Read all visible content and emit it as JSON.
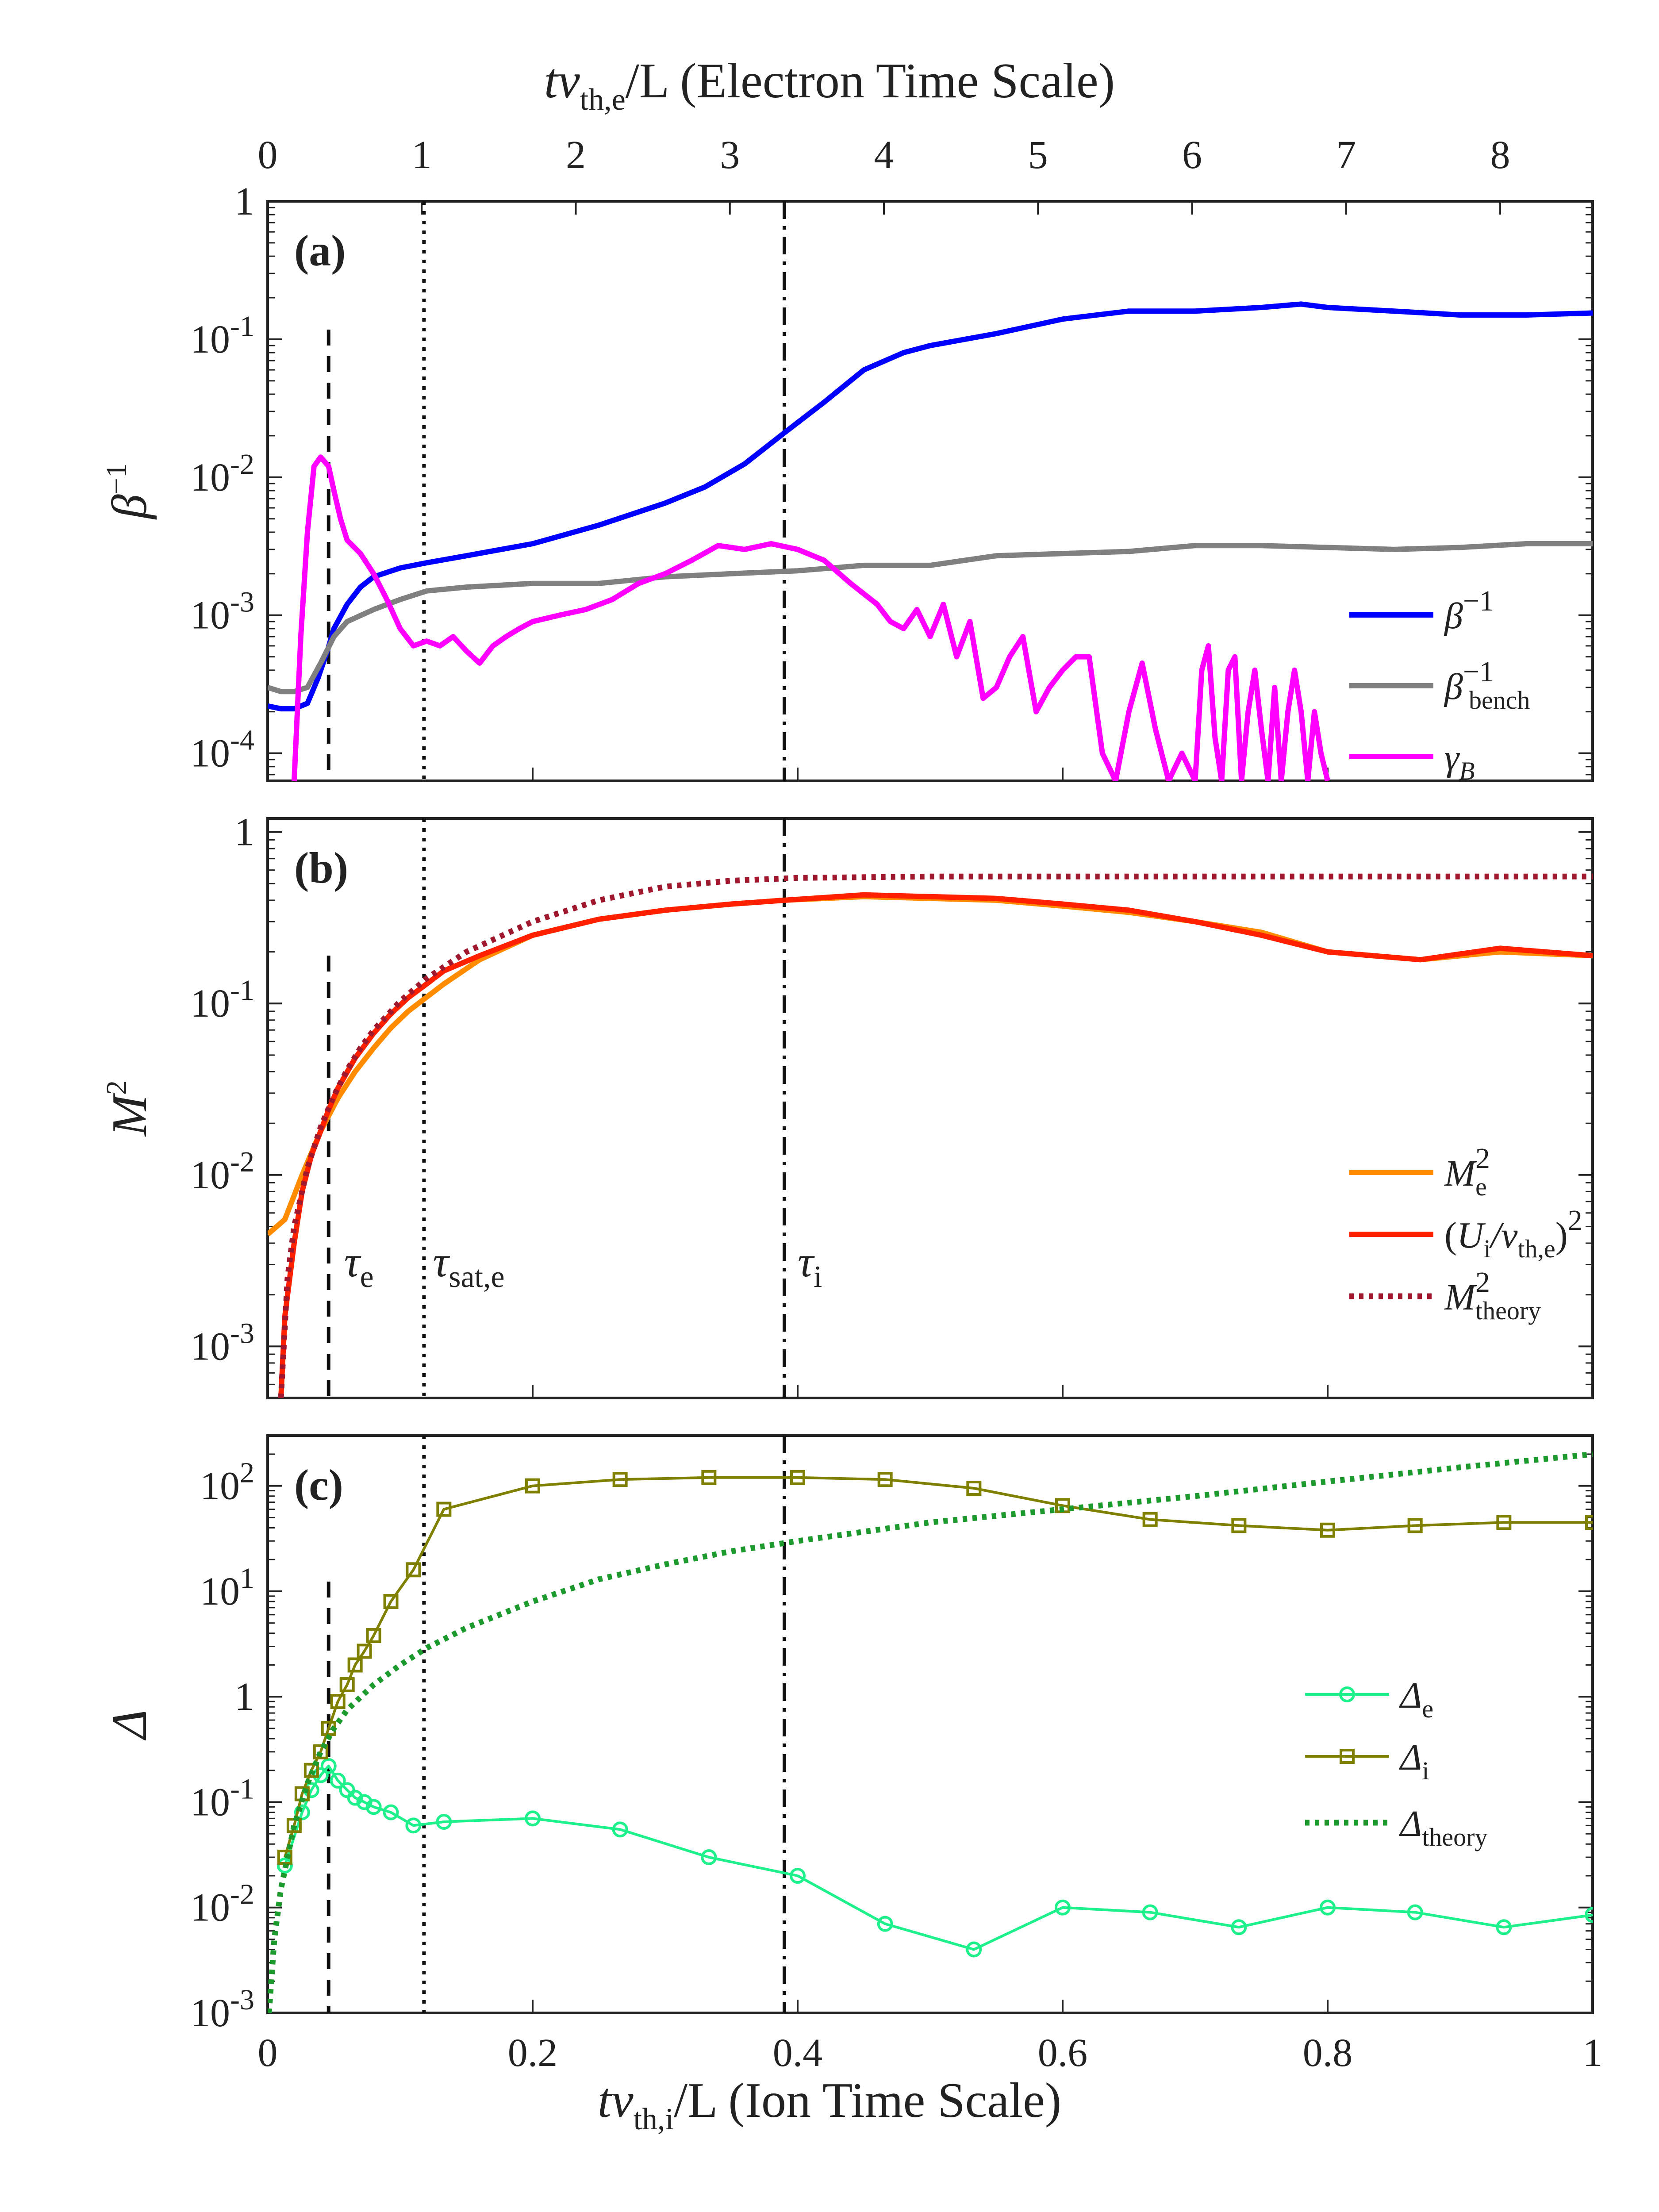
{
  "chart_data": {
    "type": "line",
    "top_axis": {
      "label": "tv_th,e/L (Electron Time Scale)",
      "label_main": "tv",
      "label_sub": "th,e",
      "label_rest": "/L (Electron Time Scale)",
      "ticks": [
        "0",
        "1",
        "2",
        "3",
        "4",
        "5",
        "6",
        "7",
        "8"
      ],
      "range": [
        0,
        8.6
      ]
    },
    "bottom_axis": {
      "label": "tv_th,i/L (Ion Time Scale)",
      "label_main": "tv",
      "label_sub": "th,i",
      "label_rest": "/L (Ion Time Scale)",
      "ticks": [
        "0",
        "0.2",
        "0.4",
        "0.6",
        "0.8",
        "1"
      ],
      "range": [
        0,
        1
      ]
    },
    "vlines": {
      "tau_e": 0.046,
      "tau_sat_e": 0.118,
      "tau_i": 0.39
    },
    "tau_labels": {
      "tau_e": "τ",
      "tau_e_sub": "e",
      "tau_sat": "τ",
      "tau_sat_sub": "sat,e",
      "tau_i": "τ",
      "tau_i_sub": "i"
    },
    "panels": [
      {
        "id": "a",
        "label": "(a)",
        "ylabel_main": "β",
        "ylabel_sup": "−1",
        "yscale": "log",
        "ylim": [
          6.31e-05,
          1
        ],
        "yticks": [
          {
            "v": 1,
            "base": "1",
            "exp": ""
          },
          {
            "v": 0.1,
            "base": "10",
            "exp": "-1"
          },
          {
            "v": 0.01,
            "base": "10",
            "exp": "-2"
          },
          {
            "v": 0.001,
            "base": "10",
            "exp": "-3"
          },
          {
            "v": 0.0001,
            "base": "10",
            "exp": "-4"
          }
        ],
        "legend_position": "bottom-right",
        "series": [
          {
            "name": "β^-1",
            "legend_main": "β",
            "legend_sup": "−1",
            "legend_sub": "",
            "color": "#0000ff",
            "style": "solid",
            "x": [
              0,
              0.01,
              0.02,
              0.03,
              0.038,
              0.045,
              0.05,
              0.06,
              0.07,
              0.08,
              0.1,
              0.12,
              0.15,
              0.2,
              0.25,
              0.3,
              0.33,
              0.36,
              0.39,
              0.42,
              0.45,
              0.48,
              0.5,
              0.55,
              0.6,
              0.65,
              0.7,
              0.75,
              0.78,
              0.8,
              0.85,
              0.9,
              0.95,
              1.0
            ],
            "y": [
              0.00022,
              0.00021,
              0.00021,
              0.00023,
              0.00035,
              0.00055,
              0.0008,
              0.0012,
              0.0016,
              0.0019,
              0.0022,
              0.0024,
              0.0027,
              0.0033,
              0.0045,
              0.0065,
              0.0085,
              0.0125,
              0.021,
              0.035,
              0.06,
              0.08,
              0.09,
              0.11,
              0.14,
              0.16,
              0.16,
              0.17,
              0.18,
              0.17,
              0.16,
              0.15,
              0.15,
              0.155
            ]
          },
          {
            "name": "β^-1_bench",
            "legend_main": "β",
            "legend_sup": "−1",
            "legend_sub": "bench",
            "color": "#808080",
            "style": "solid",
            "x": [
              0,
              0.01,
              0.02,
              0.03,
              0.04,
              0.05,
              0.06,
              0.08,
              0.1,
              0.12,
              0.15,
              0.2,
              0.25,
              0.3,
              0.35,
              0.4,
              0.45,
              0.5,
              0.55,
              0.6,
              0.65,
              0.7,
              0.75,
              0.8,
              0.85,
              0.9,
              0.95,
              1.0
            ],
            "y": [
              0.0003,
              0.00028,
              0.00028,
              0.0003,
              0.00045,
              0.0007,
              0.0009,
              0.0011,
              0.0013,
              0.0015,
              0.0016,
              0.0017,
              0.0017,
              0.0019,
              0.002,
              0.0021,
              0.0023,
              0.0023,
              0.0027,
              0.0028,
              0.0029,
              0.0032,
              0.0032,
              0.0031,
              0.003,
              0.0031,
              0.0033,
              0.0033
            ]
          },
          {
            "name": "γ_B",
            "legend_main": "γ",
            "legend_sup": "",
            "legend_sub": "B",
            "color": "#ff00ff",
            "style": "solid",
            "x": [
              0.02,
              0.025,
              0.03,
              0.035,
              0.04,
              0.046,
              0.05,
              0.055,
              0.06,
              0.07,
              0.08,
              0.09,
              0.1,
              0.11,
              0.12,
              0.13,
              0.14,
              0.15,
              0.16,
              0.17,
              0.18,
              0.19,
              0.2,
              0.22,
              0.24,
              0.26,
              0.28,
              0.3,
              0.32,
              0.34,
              0.36,
              0.38,
              0.4,
              0.42,
              0.44,
              0.46,
              0.47,
              0.48,
              0.49,
              0.5,
              0.51,
              0.52,
              0.53,
              0.54,
              0.55,
              0.56,
              0.57,
              0.58,
              0.59,
              0.6,
              0.61,
              0.62,
              0.63,
              0.64,
              0.65,
              0.66,
              0.67,
              0.68,
              0.69,
              0.7,
              0.705,
              0.71,
              0.715,
              0.72,
              0.725,
              0.73,
              0.735,
              0.74,
              0.745,
              0.75,
              0.755,
              0.76,
              0.765,
              0.77,
              0.775,
              0.78,
              0.785,
              0.79,
              0.795,
              0.8
            ],
            "y": [
              6e-05,
              0.0007,
              0.004,
              0.012,
              0.014,
              0.012,
              0.008,
              0.005,
              0.0035,
              0.0028,
              0.002,
              0.0013,
              0.0008,
              0.0006,
              0.00065,
              0.0006,
              0.0007,
              0.00055,
              0.00045,
              0.0006,
              0.0007,
              0.0008,
              0.0009,
              0.001,
              0.0011,
              0.0013,
              0.0017,
              0.002,
              0.0025,
              0.0032,
              0.003,
              0.0033,
              0.003,
              0.0025,
              0.0017,
              0.0012,
              0.0009,
              0.0008,
              0.0011,
              0.0007,
              0.0012,
              0.0005,
              0.0009,
              0.00025,
              0.0003,
              0.0005,
              0.0007,
              0.0002,
              0.0003,
              0.0004,
              0.0005,
              0.0005,
              0.0001,
              6e-05,
              0.0002,
              0.00045,
              0.00015,
              6e-05,
              0.0001,
              6e-05,
              0.0004,
              0.0006,
              0.00013,
              6e-05,
              0.0004,
              0.0005,
              6e-05,
              0.0002,
              0.0004,
              0.00015,
              6e-05,
              0.0003,
              6e-05,
              0.0002,
              0.0004,
              0.0002,
              6e-05,
              0.0002,
              0.0001,
              6e-05
            ]
          }
        ]
      },
      {
        "id": "b",
        "label": "(b)",
        "ylabel_main": "M",
        "ylabel_sup": "2",
        "yscale": "log",
        "ylim": [
          0.0005,
          1.2
        ],
        "yticks": [
          {
            "v": 1,
            "base": "1",
            "exp": ""
          },
          {
            "v": 0.1,
            "base": "10",
            "exp": "-1"
          },
          {
            "v": 0.01,
            "base": "10",
            "exp": "-2"
          },
          {
            "v": 0.001,
            "base": "10",
            "exp": "-3"
          }
        ],
        "legend_position": "bottom-right",
        "series": [
          {
            "name": "M_e^2",
            "legend_text": "M",
            "legend_sup": "2",
            "legend_sub": "e",
            "color": "#ff8c00",
            "style": "solid",
            "x": [
              0,
              0.013,
              0.026,
              0.04,
              0.053,
              0.066,
              0.08,
              0.093,
              0.106,
              0.133,
              0.16,
              0.2,
              0.25,
              0.3,
              0.35,
              0.39,
              0.45,
              0.5,
              0.55,
              0.6,
              0.65,
              0.7,
              0.75,
              0.8,
              0.87,
              0.93,
              1.0
            ],
            "y": [
              0.0045,
              0.0055,
              0.01,
              0.018,
              0.028,
              0.04,
              0.055,
              0.072,
              0.09,
              0.13,
              0.18,
              0.25,
              0.31,
              0.35,
              0.38,
              0.4,
              0.42,
              0.41,
              0.4,
              0.37,
              0.34,
              0.3,
              0.26,
              0.2,
              0.18,
              0.2,
              0.19
            ]
          },
          {
            "name": "(U_i/v_th,e)^2",
            "legend_text": "(U",
            "legend_sup": "2",
            "legend_sub": "i",
            "legend_text2": "/v",
            "legend_sub2": "th,e",
            "legend_text3": ")",
            "color": "#ff2000",
            "style": "solid",
            "x": [
              0.01,
              0.013,
              0.02,
              0.026,
              0.033,
              0.04,
              0.046,
              0.053,
              0.066,
              0.08,
              0.093,
              0.106,
              0.12,
              0.133,
              0.16,
              0.2,
              0.25,
              0.3,
              0.35,
              0.39,
              0.45,
              0.5,
              0.55,
              0.6,
              0.65,
              0.7,
              0.75,
              0.8,
              0.87,
              0.93,
              1.0
            ],
            "y": [
              0.0005,
              0.0015,
              0.004,
              0.008,
              0.013,
              0.018,
              0.024,
              0.032,
              0.048,
              0.067,
              0.087,
              0.108,
              0.13,
              0.155,
              0.19,
              0.25,
              0.31,
              0.35,
              0.38,
              0.4,
              0.43,
              0.42,
              0.41,
              0.38,
              0.35,
              0.3,
              0.25,
              0.2,
              0.18,
              0.21,
              0.19
            ]
          },
          {
            "name": "M^2_theory",
            "legend_text": "M",
            "legend_sup": "2",
            "legend_sub": "theory",
            "color": "#a0182e",
            "style": "dotted",
            "x": [
              0.01,
              0.015,
              0.02,
              0.03,
              0.04,
              0.05,
              0.06,
              0.07,
              0.08,
              0.1,
              0.12,
              0.15,
              0.2,
              0.25,
              0.3,
              0.35,
              0.4,
              0.5,
              0.6,
              0.7,
              0.8,
              0.9,
              1.0
            ],
            "y": [
              0.0005,
              0.0025,
              0.005,
              0.011,
              0.019,
              0.029,
              0.041,
              0.055,
              0.07,
              0.103,
              0.14,
              0.2,
              0.3,
              0.4,
              0.48,
              0.52,
              0.54,
              0.55,
              0.55,
              0.55,
              0.55,
              0.55,
              0.55
            ]
          }
        ]
      },
      {
        "id": "c",
        "label": "(c)",
        "ylabel_main": "Δ",
        "ylabel_sup": "",
        "yscale": "log",
        "ylim": [
          0.001,
          300
        ],
        "yticks": [
          {
            "v": 100,
            "base": "10",
            "exp": "2"
          },
          {
            "v": 10,
            "base": "10",
            "exp": "1"
          },
          {
            "v": 1,
            "base": "1",
            "exp": ""
          },
          {
            "v": 0.1,
            "base": "10",
            "exp": "-1"
          },
          {
            "v": 0.01,
            "base": "10",
            "exp": "-2"
          },
          {
            "v": 0.001,
            "base": "10",
            "exp": "-3"
          }
        ],
        "legend_position": "bottom-right",
        "series": [
          {
            "name": "Δ_e",
            "legend_main": "Δ",
            "legend_sub": "e",
            "color": "#1ef08c",
            "style": "solid",
            "marker": "circle",
            "x": [
              0.013,
              0.026,
              0.033,
              0.04,
              0.046,
              0.053,
              0.06,
              0.066,
              0.073,
              0.08,
              0.093,
              0.11,
              0.133,
              0.2,
              0.266,
              0.333,
              0.4,
              0.466,
              0.533,
              0.6,
              0.666,
              0.733,
              0.8,
              0.866,
              0.933,
              1.0
            ],
            "y": [
              0.025,
              0.08,
              0.13,
              0.18,
              0.22,
              0.16,
              0.13,
              0.11,
              0.1,
              0.09,
              0.08,
              0.06,
              0.065,
              0.07,
              0.055,
              0.03,
              0.02,
              0.007,
              0.004,
              0.01,
              0.009,
              0.0065,
              0.01,
              0.009,
              0.0065,
              0.0085
            ]
          },
          {
            "name": "Δ_i",
            "legend_main": "Δ",
            "legend_sub": "i",
            "color": "#808000",
            "style": "solid",
            "marker": "square",
            "x": [
              0.013,
              0.02,
              0.026,
              0.033,
              0.04,
              0.046,
              0.053,
              0.06,
              0.066,
              0.073,
              0.08,
              0.093,
              0.11,
              0.133,
              0.2,
              0.266,
              0.333,
              0.4,
              0.466,
              0.533,
              0.6,
              0.666,
              0.733,
              0.8,
              0.866,
              0.933,
              1.0
            ],
            "y": [
              0.03,
              0.06,
              0.12,
              0.2,
              0.3,
              0.5,
              0.9,
              1.3,
              2,
              2.7,
              3.8,
              8,
              16,
              60,
              100,
              115,
              120,
              120,
              115,
              95,
              65,
              48,
              42,
              38,
              42,
              45,
              45
            ]
          },
          {
            "name": "Δ_theory",
            "legend_main": "Δ",
            "legend_sub": "theory",
            "color": "#1c9a2e",
            "style": "dotted",
            "x": [
              0.001,
              0.005,
              0.01,
              0.02,
              0.03,
              0.04,
              0.05,
              0.06,
              0.08,
              0.1,
              0.12,
              0.15,
              0.2,
              0.25,
              0.3,
              0.35,
              0.4,
              0.5,
              0.6,
              0.7,
              0.8,
              0.9,
              1.0
            ],
            "y": [
              0.001,
              0.005,
              0.015,
              0.06,
              0.15,
              0.3,
              0.5,
              0.75,
              1.3,
              2.0,
              2.9,
              4.5,
              8,
              13,
              18,
              24,
              30,
              45,
              60,
              80,
              110,
              150,
              200
            ]
          }
        ]
      }
    ]
  }
}
